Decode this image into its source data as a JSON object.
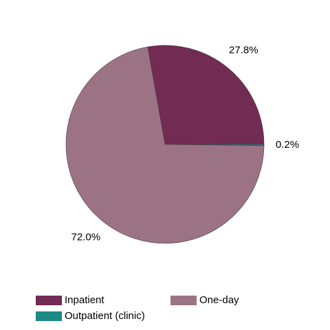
{
  "chart_data": {
    "type": "pie",
    "categories": [
      "Inpatient",
      "Outpatient (clinic)",
      "One-day"
    ],
    "values": [
      27.8,
      0.2,
      72.0
    ],
    "value_labels": [
      "27.8%",
      "0.2%",
      "72.0%"
    ],
    "colors": [
      "#722b52",
      "#1d8a86",
      "#9b7385"
    ],
    "legend": "bottom"
  }
}
